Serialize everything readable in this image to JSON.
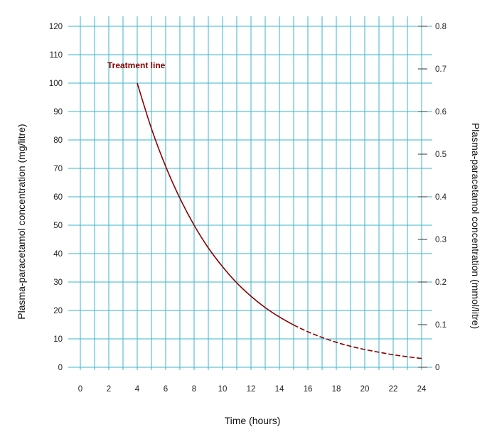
{
  "chart_data": {
    "type": "line",
    "title": "",
    "xlabel": "Time (hours)",
    "ylabel": "Plasma-paracetamol concentration (mg/litre)",
    "y2label": "Plasma-paracetamol concentration (mmol/litre)",
    "xlim": [
      0,
      24
    ],
    "ylim": [
      0,
      120
    ],
    "y2lim": [
      0,
      0.8
    ],
    "x_ticks": [
      0,
      2,
      4,
      6,
      8,
      10,
      12,
      14,
      16,
      18,
      20,
      22,
      24
    ],
    "y_ticks": [
      0,
      10,
      20,
      30,
      40,
      50,
      60,
      70,
      80,
      90,
      100,
      110,
      120
    ],
    "y2_ticks": [
      "0",
      "0.1",
      "0.2",
      "0.3",
      "0.4",
      "0.5",
      "0.6",
      "0.7",
      "0.8"
    ],
    "grid": true,
    "grid_color": "#3ab4c8",
    "series": [
      {
        "name": "Treatment line",
        "color": "#8b0000",
        "x": [
          4,
          5,
          6,
          7,
          8,
          9,
          10,
          11,
          12,
          13,
          14,
          15,
          16,
          17,
          18,
          19,
          20,
          21,
          22,
          23,
          24
        ],
        "y": [
          100,
          84,
          70.7,
          59.5,
          50,
          42,
          35.4,
          29.7,
          25,
          21,
          17.7,
          14.9,
          12.5,
          10.5,
          8.8,
          7.4,
          6.25,
          5.3,
          4.4,
          3.7,
          3.1
        ],
        "dashed_from_x": 15.5
      }
    ],
    "annotations": [
      {
        "text": "Treatment line",
        "x": 4,
        "y": 106
      }
    ]
  }
}
